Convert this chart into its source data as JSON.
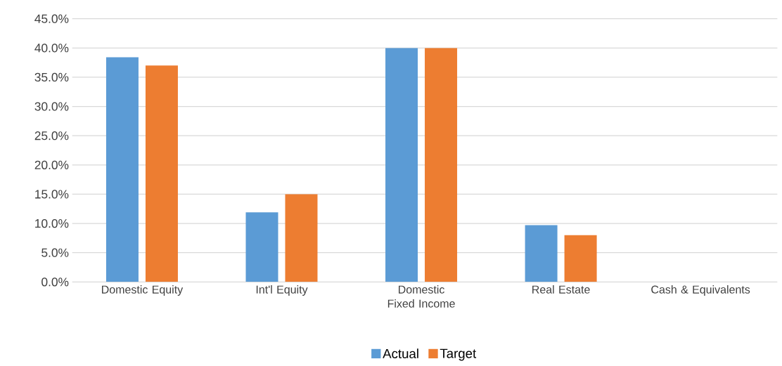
{
  "chart_data": {
    "type": "bar",
    "categories": [
      "Domestic Equity",
      "Int'l Equity",
      "Domestic Fixed Income",
      "Real Estate",
      "Cash & Equivalents"
    ],
    "series": [
      {
        "name": "Actual",
        "color": "#5b9bd5",
        "values": [
          38.4,
          11.9,
          40.0,
          9.7,
          0
        ]
      },
      {
        "name": "Target",
        "color": "#ed7d31",
        "values": [
          37.0,
          15.0,
          40.0,
          8.0,
          0
        ]
      }
    ],
    "ylim": [
      0,
      45
    ],
    "yticks": [
      {
        "value": 0,
        "label": "0.0%"
      },
      {
        "value": 5,
        "label": "5.0%"
      },
      {
        "value": 10,
        "label": "10.0%"
      },
      {
        "value": 15,
        "label": "15.0%"
      },
      {
        "value": 20,
        "label": "20.0%"
      },
      {
        "value": 25,
        "label": "25.0%"
      },
      {
        "value": 30,
        "label": "30.0%"
      },
      {
        "value": 35,
        "label": "35.0%"
      },
      {
        "value": 40,
        "label": "40.0%"
      },
      {
        "value": 45,
        "label": "45.0%"
      }
    ],
    "grid": "y",
    "legend": "bottom"
  }
}
